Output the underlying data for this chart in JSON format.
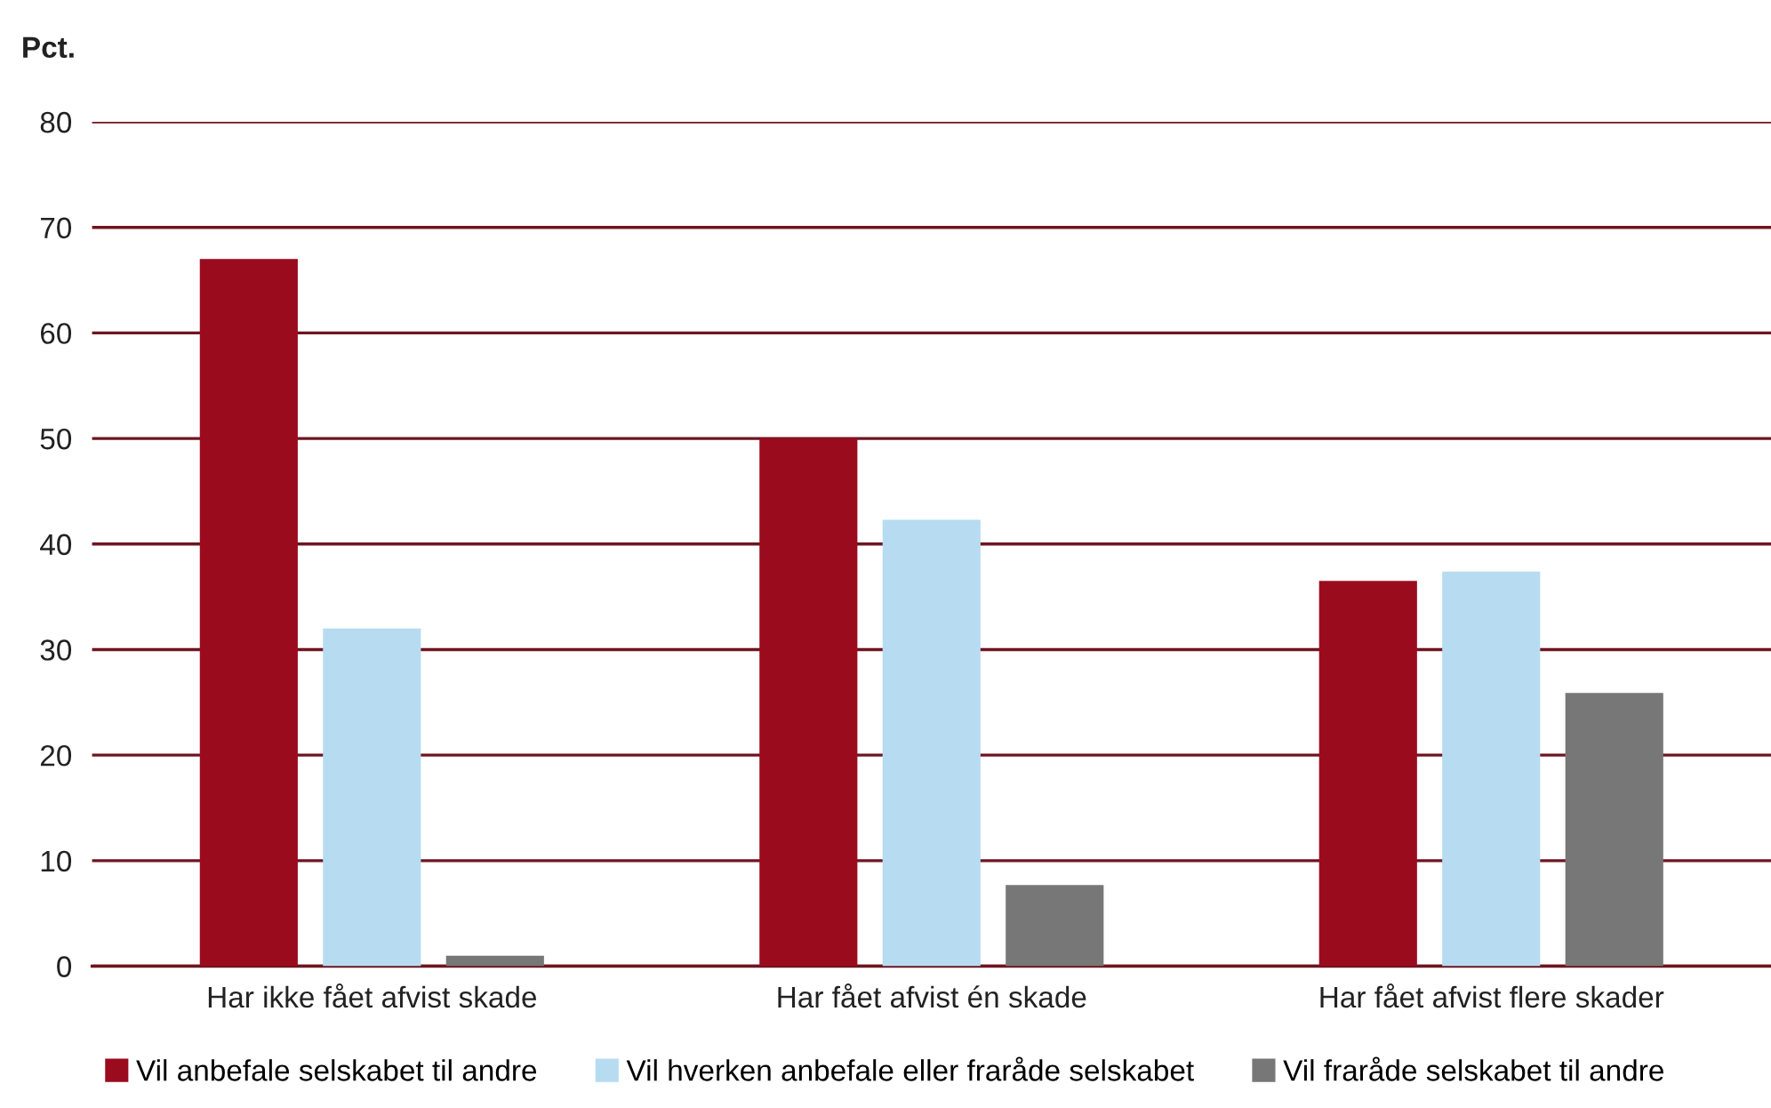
{
  "chart_data": {
    "type": "bar",
    "ylabel": "Pct.",
    "categories": [
      "Har ikke fået afvist skade",
      "Har fået afvist én skade",
      "Har fået afvist flere skader"
    ],
    "series": [
      {
        "name": "Vil anbefale selskabet til andre",
        "color": "#9b0b1e",
        "values": [
          67,
          50,
          36.5
        ]
      },
      {
        "name": "Vil hverken anbefale eller fraråde selskabet",
        "color": "#b7dcf2",
        "values": [
          32,
          42.3,
          37.4
        ]
      },
      {
        "name": "Vil fraråde selskabet til andre",
        "color": "#777777",
        "values": [
          1,
          7.7,
          25.9
        ]
      }
    ],
    "ylim": [
      0,
      80
    ],
    "yticks": [
      0,
      10,
      20,
      30,
      40,
      50,
      60,
      70,
      80
    ],
    "grid": "y",
    "legend": "bottom"
  }
}
